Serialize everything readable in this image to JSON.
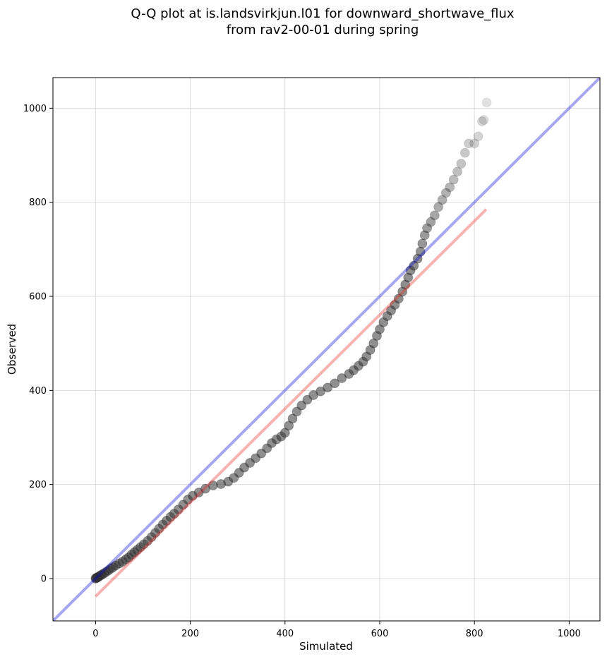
{
  "chart_data": {
    "type": "scatter",
    "title": "Q-Q plot at is.landsvirkjun.l01 for downward_shortwave_flux",
    "subtitle": "from rav2-00-01 during spring",
    "xlabel": "Simulated",
    "ylabel": "Observed",
    "xlim": [
      -90,
      1065
    ],
    "ylim": [
      -90,
      1065
    ],
    "x_ticks": [
      0,
      200,
      400,
      600,
      800,
      1000
    ],
    "y_ticks": [
      0,
      200,
      400,
      600,
      800,
      1000
    ],
    "grid": true,
    "legend": "none",
    "colors": {
      "points": "#333333",
      "points_edge": "#000000",
      "identity_line": "#0000dd",
      "fit_line": "#ee2222",
      "grid": "#dddddd"
    },
    "identity_line": {
      "x": [
        -90,
        1065
      ],
      "y": [
        -90,
        1065
      ]
    },
    "fit_line": {
      "x": [
        0,
        825
      ],
      "y": [
        -38,
        785
      ]
    },
    "points": [
      [
        0,
        0
      ],
      [
        1,
        1
      ],
      [
        3,
        2
      ],
      [
        5,
        3
      ],
      [
        8,
        5
      ],
      [
        11,
        7
      ],
      [
        14,
        9
      ],
      [
        18,
        11
      ],
      [
        22,
        14
      ],
      [
        27,
        17
      ],
      [
        32,
        21
      ],
      [
        37,
        24
      ],
      [
        43,
        28
      ],
      [
        50,
        32
      ],
      [
        57,
        36
      ],
      [
        64,
        41
      ],
      [
        70,
        45
      ],
      [
        76,
        51
      ],
      [
        82,
        56
      ],
      [
        88,
        61
      ],
      [
        95,
        67
      ],
      [
        102,
        73
      ],
      [
        110,
        80
      ],
      [
        118,
        88
      ],
      [
        126,
        97
      ],
      [
        134,
        106
      ],
      [
        142,
        115
      ],
      [
        150,
        123
      ],
      [
        158,
        131
      ],
      [
        166,
        138
      ],
      [
        175,
        147
      ],
      [
        185,
        157
      ],
      [
        195,
        168
      ],
      [
        205,
        176
      ],
      [
        218,
        183
      ],
      [
        232,
        191
      ],
      [
        248,
        198
      ],
      [
        265,
        201
      ],
      [
        280,
        206
      ],
      [
        292,
        214
      ],
      [
        303,
        225
      ],
      [
        314,
        236
      ],
      [
        326,
        246
      ],
      [
        338,
        256
      ],
      [
        350,
        266
      ],
      [
        362,
        277
      ],
      [
        372,
        288
      ],
      [
        382,
        296
      ],
      [
        392,
        302
      ],
      [
        400,
        310
      ],
      [
        408,
        325
      ],
      [
        416,
        340
      ],
      [
        425,
        355
      ],
      [
        435,
        368
      ],
      [
        447,
        380
      ],
      [
        460,
        390
      ],
      [
        475,
        398
      ],
      [
        490,
        406
      ],
      [
        505,
        415
      ],
      [
        520,
        426
      ],
      [
        535,
        435
      ],
      [
        545,
        443
      ],
      [
        555,
        452
      ],
      [
        565,
        461
      ],
      [
        572,
        472
      ],
      [
        580,
        486
      ],
      [
        587,
        500
      ],
      [
        594,
        516
      ],
      [
        600,
        530
      ],
      [
        608,
        545
      ],
      [
        616,
        558
      ],
      [
        624,
        570
      ],
      [
        632,
        582
      ],
      [
        640,
        595
      ],
      [
        648,
        610
      ],
      [
        654,
        625
      ],
      [
        660,
        640
      ],
      [
        665,
        655
      ],
      [
        672,
        665
      ],
      [
        680,
        680
      ],
      [
        686,
        695
      ],
      [
        690,
        712
      ],
      [
        695,
        730
      ],
      [
        700,
        745
      ],
      [
        708,
        758
      ],
      [
        716,
        772
      ],
      [
        724,
        790
      ],
      [
        732,
        805
      ],
      [
        740,
        820
      ],
      [
        748,
        832
      ],
      [
        756,
        848
      ],
      [
        764,
        865
      ],
      [
        772,
        882
      ],
      [
        780,
        905
      ],
      [
        788,
        925
      ],
      [
        800,
        925
      ],
      [
        808,
        940
      ],
      [
        816,
        972
      ],
      [
        820,
        975
      ],
      [
        826,
        1012
      ]
    ]
  }
}
